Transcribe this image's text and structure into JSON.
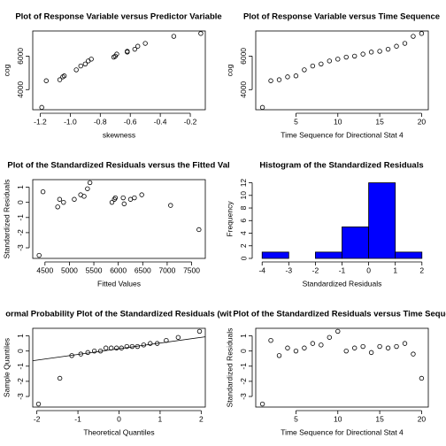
{
  "chart_data": [
    {
      "type": "scatter",
      "title": "Plot of Response Variable versus Predictor Variable",
      "x_label": "skewness",
      "y_label": "cog",
      "x": [
        -1.19,
        -1.16,
        -1.07,
        -1.05,
        -1.04,
        -0.96,
        -0.93,
        -0.9,
        -0.88,
        -0.86,
        -0.71,
        -0.7,
        -0.69,
        -0.62,
        -0.62,
        -0.57,
        -0.55,
        -0.5,
        -0.31,
        -0.13
      ],
      "values": [
        2940,
        4530,
        4590,
        4760,
        4820,
        5180,
        5410,
        5530,
        5710,
        5820,
        5940,
        6000,
        6120,
        6240,
        6290,
        6410,
        6590,
        6760,
        7180,
        7350
      ],
      "color": "#000000",
      "xlim": [
        -1.25,
        -0.1
      ],
      "xticks": [
        -1.2,
        {
          "value": -1,
          "label": "-1.0"
        },
        -0.8,
        -0.6,
        -0.4,
        -0.2
      ],
      "ylim": [
        2800,
        7500
      ],
      "yticks": [
        4000,
        6000
      ]
    },
    {
      "type": "scatter",
      "title": "Plot of Response Variable versus Time Sequence",
      "x_label": "Time Sequence for Directional Stat 4",
      "y_label": "cog",
      "x": [
        1,
        2,
        3,
        4,
        5,
        6,
        7,
        8,
        9,
        10,
        11,
        12,
        13,
        14,
        15,
        16,
        17,
        18,
        19,
        20
      ],
      "values": [
        2940,
        4530,
        4590,
        4760,
        4820,
        5180,
        5410,
        5530,
        5710,
        5820,
        5940,
        6000,
        6120,
        6240,
        6290,
        6410,
        6590,
        6760,
        7180,
        7350
      ],
      "color": "#000000",
      "xlim": [
        0.2,
        20.8
      ],
      "xticks": [
        5,
        10,
        15,
        20
      ],
      "ylim": [
        2800,
        7500
      ],
      "yticks": [
        4000,
        6000
      ]
    },
    {
      "type": "scatter",
      "title": "Plot of the Standardized Residuals versus the Fitted Val",
      "x_label": "Fitted Values",
      "y_label": "Standardized Residuals",
      "x": [
        4380,
        4460,
        4760,
        4800,
        4880,
        5100,
        5230,
        5300,
        5370,
        5420,
        5870,
        5920,
        5940,
        6100,
        6120,
        6250,
        6330,
        6480,
        7070,
        7650
      ],
      "values": [
        -3.5,
        0.7,
        -0.3,
        0.2,
        0.0,
        0.2,
        0.5,
        0.4,
        0.9,
        1.3,
        0.0,
        0.2,
        0.3,
        0.3,
        -0.1,
        0.2,
        0.3,
        0.5,
        -0.2,
        -1.8
      ],
      "color": "#000000",
      "xlim": [
        4250,
        7780
      ],
      "xticks": [
        4500,
        5000,
        5500,
        6000,
        6500,
        7000,
        7500
      ],
      "ylim": [
        -3.7,
        1.5
      ],
      "yticks": [
        -3,
        -2,
        -1,
        0,
        1
      ]
    },
    {
      "type": "histogram",
      "title": "Histogram of the Standardized Residuals",
      "x_label": "Standardized Residuals",
      "y_label": "Frequency",
      "bins": [
        -4,
        -3,
        -2,
        -1,
        0,
        1,
        2
      ],
      "values": [
        1,
        0,
        1,
        5,
        12,
        1
      ],
      "color": "#0000ff",
      "xlim": [
        -4.24,
        2.24
      ],
      "xticks": [
        -4,
        -3,
        -2,
        -1,
        0,
        1,
        2
      ],
      "ylim": [
        0,
        12.5
      ],
      "yticks": [
        0,
        2,
        4,
        6,
        8,
        10,
        12
      ]
    },
    {
      "type": "qq",
      "title": "ormal Probability Plot of the Standardized Residuals (wit",
      "x_label": "Theoretical Quantiles",
      "y_label": "Sample Quantiles",
      "x": [
        -1.96,
        -1.44,
        -1.15,
        -0.93,
        -0.76,
        -0.6,
        -0.45,
        -0.32,
        -0.19,
        -0.06,
        0.06,
        0.19,
        0.32,
        0.45,
        0.6,
        0.76,
        0.93,
        1.15,
        1.44,
        1.96
      ],
      "values": [
        -3.5,
        -1.8,
        -0.3,
        -0.2,
        -0.1,
        0.0,
        0.0,
        0.2,
        0.2,
        0.2,
        0.2,
        0.3,
        0.3,
        0.3,
        0.4,
        0.5,
        0.5,
        0.7,
        0.9,
        1.3
      ],
      "reference_line": {
        "x": [
          -2.1,
          2.1
        ],
        "values": [
          -0.64,
          0.94
        ]
      },
      "color": "#000000",
      "xlim": [
        -2.1,
        2.1
      ],
      "xticks": [
        -2,
        -1,
        0,
        1,
        2
      ],
      "ylim": [
        -3.7,
        1.5
      ],
      "yticks": [
        -3,
        -2,
        -1,
        0,
        1
      ]
    },
    {
      "type": "scatter",
      "title": "Plot of the Standardized Residuals versus Time Seque",
      "x_label": "Time Sequence for Directional Stat 4",
      "y_label": "Standardized Residuals",
      "x": [
        1,
        2,
        3,
        4,
        5,
        6,
        7,
        8,
        9,
        10,
        11,
        12,
        13,
        14,
        15,
        16,
        17,
        18,
        19,
        20
      ],
      "values": [
        -3.5,
        0.7,
        -0.3,
        0.2,
        0.0,
        0.2,
        0.5,
        0.4,
        0.9,
        1.3,
        0.0,
        0.2,
        0.3,
        -0.1,
        0.3,
        0.2,
        0.3,
        0.5,
        -0.2,
        -1.8
      ],
      "color": "#000000",
      "xlim": [
        0.2,
        20.8
      ],
      "xticks": [
        5,
        10,
        15,
        20
      ],
      "ylim": [
        -3.7,
        1.5
      ],
      "yticks": [
        -3,
        -2,
        -1,
        0,
        1
      ]
    }
  ]
}
